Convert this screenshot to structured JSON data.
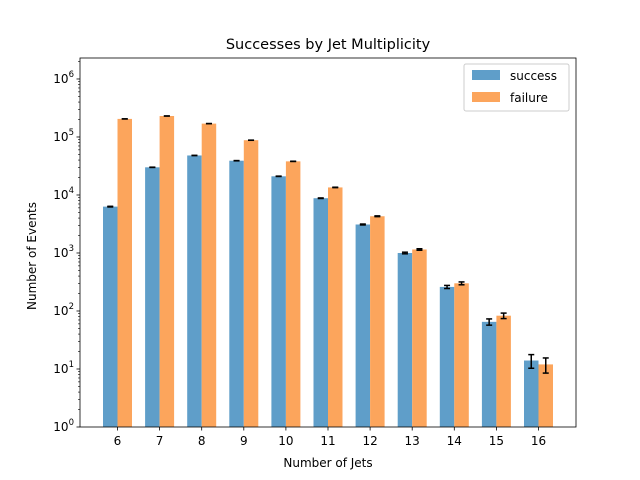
{
  "chart_data": {
    "type": "bar",
    "title": "Successes by Jet Multiplicity",
    "xlabel": "Number of Jets",
    "ylabel": "Number of Events",
    "yscale": "log",
    "ylim": [
      1,
      2300000
    ],
    "grid": false,
    "legend_placement": "top-right",
    "categories": [
      "6",
      "7",
      "8",
      "9",
      "10",
      "11",
      "12",
      "13",
      "14",
      "15",
      "16"
    ],
    "series": [
      {
        "name": "success",
        "color": "#5f9ec9",
        "values": [
          6300,
          30000,
          48000,
          39000,
          21000,
          8800,
          3100,
          1000,
          260,
          65,
          14
        ],
        "errors": [
          80,
          170,
          220,
          200,
          145,
          94,
          56,
          32,
          16,
          8,
          3.7
        ]
      },
      {
        "name": "failure",
        "color": "#fca55c",
        "values": [
          205000,
          230000,
          170000,
          88000,
          38000,
          13500,
          4300,
          1150,
          300,
          83,
          12
        ],
        "errors": [
          450,
          480,
          410,
          300,
          195,
          116,
          66,
          34,
          17,
          9,
          3.5
        ]
      }
    ],
    "yticks": [
      {
        "value": 1,
        "base": "10",
        "exp": "0"
      },
      {
        "value": 10,
        "base": "10",
        "exp": "1"
      },
      {
        "value": 100,
        "base": "10",
        "exp": "2"
      },
      {
        "value": 1000,
        "base": "10",
        "exp": "3"
      },
      {
        "value": 10000,
        "base": "10",
        "exp": "4"
      },
      {
        "value": 100000,
        "base": "10",
        "exp": "5"
      },
      {
        "value": 1000000,
        "base": "10",
        "exp": "6"
      }
    ]
  }
}
